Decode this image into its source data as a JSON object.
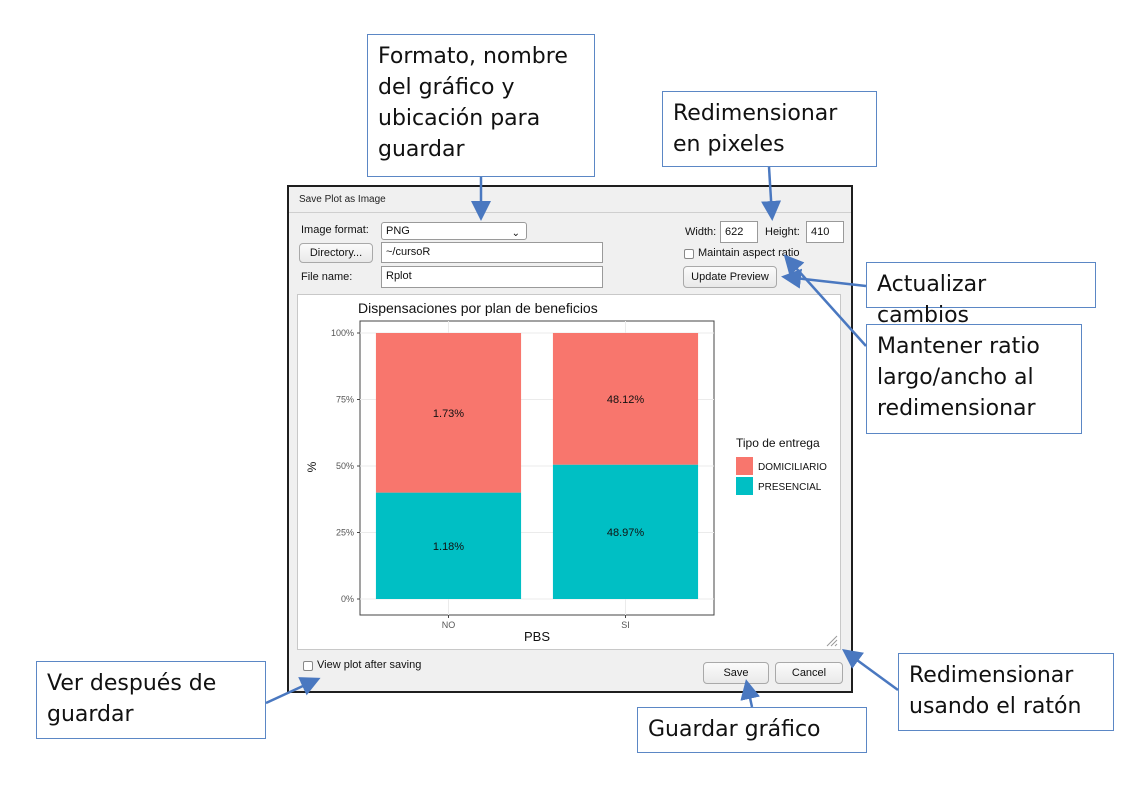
{
  "dialog": {
    "title": "Save Plot as Image",
    "image_format_label": "Image format:",
    "image_format_value": "PNG",
    "directory_button": "Directory...",
    "directory_value": "~/cursoR",
    "file_name_label": "File name:",
    "file_name_value": "Rplot",
    "width_label": "Width:",
    "width_value": "622",
    "height_label": "Height:",
    "height_value": "410",
    "maintain_aspect_label": "Maintain aspect ratio",
    "update_preview_button": "Update Preview",
    "view_after_saving_label": "View plot after saving",
    "save_button": "Save",
    "cancel_button": "Cancel"
  },
  "callouts": {
    "formato": "Formato, nombre\ndel gráfico y\nubicación para\nguardar",
    "redimensionar_px": "Redimensionar\nen pixeles",
    "actualizar": "Actualizar cambios",
    "mantener": "Mantener ratio\nlargo/ancho al\nredimensionar",
    "ver_despues": "Ver después de\nguardar",
    "guardar": "Guardar gráfico",
    "redimensionar_raton": "Redimensionar\nusando el ratón"
  },
  "colors": {
    "callout_border": "#5b87c5",
    "domiciliario": "#f8766d",
    "presencial": "#00bfc4"
  },
  "chart_data": {
    "type": "bar",
    "stacked": true,
    "title": "Dispensaciones por plan de beneficios",
    "xlabel": "PBS",
    "ylabel": "%",
    "categories": [
      "NO",
      "SI"
    ],
    "y_ticks": [
      "0%",
      "25%",
      "50%",
      "75%",
      "100%"
    ],
    "ylim": [
      0,
      1
    ],
    "series": [
      {
        "name": "PRESENCIAL",
        "values": [
          0.4,
          0.505
        ],
        "labels": [
          "1.18%",
          "48.97%"
        ]
      },
      {
        "name": "DOMICILIARIO",
        "values": [
          0.6,
          0.495
        ],
        "labels": [
          "1.73%",
          "48.12%"
        ]
      }
    ],
    "legend_title": "Tipo de entrega",
    "legend_items": [
      "DOMICILIARIO",
      "PRESENCIAL"
    ],
    "legend_position": "right",
    "grid": true
  }
}
